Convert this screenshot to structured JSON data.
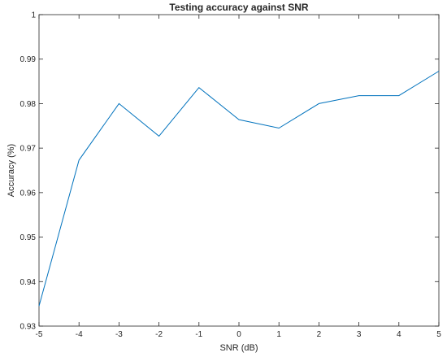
{
  "chart_data": {
    "type": "line",
    "title": "Testing accuracy against SNR",
    "xlabel": "SNR (dB)",
    "ylabel": "Accuracy (%)",
    "xlim": [
      -5,
      5
    ],
    "ylim": [
      0.93,
      1
    ],
    "xticks": [
      -5,
      -4,
      -3,
      -2,
      -1,
      0,
      1,
      2,
      3,
      4,
      5
    ],
    "yticks": [
      0.93,
      0.94,
      0.95,
      0.96,
      0.97,
      0.98,
      0.99,
      1
    ],
    "xtick_labels": [
      "-5",
      "-4",
      "-3",
      "-2",
      "-1",
      "0",
      "1",
      "2",
      "3",
      "4",
      "5"
    ],
    "ytick_labels": [
      "0.93",
      "0.94",
      "0.95",
      "0.96",
      "0.97",
      "0.98",
      "0.99",
      "1"
    ],
    "grid": false,
    "legend": "none",
    "series": [
      {
        "color": "#0072BD",
        "x": [
          -5,
          -4,
          -3,
          -2,
          -1,
          0,
          1,
          2,
          3,
          4,
          5
        ],
        "y": [
          0.9345,
          0.9673,
          0.98,
          0.9727,
          0.9836,
          0.9764,
          0.9745,
          0.98,
          0.9818,
          0.9818,
          0.9873
        ]
      }
    ]
  }
}
